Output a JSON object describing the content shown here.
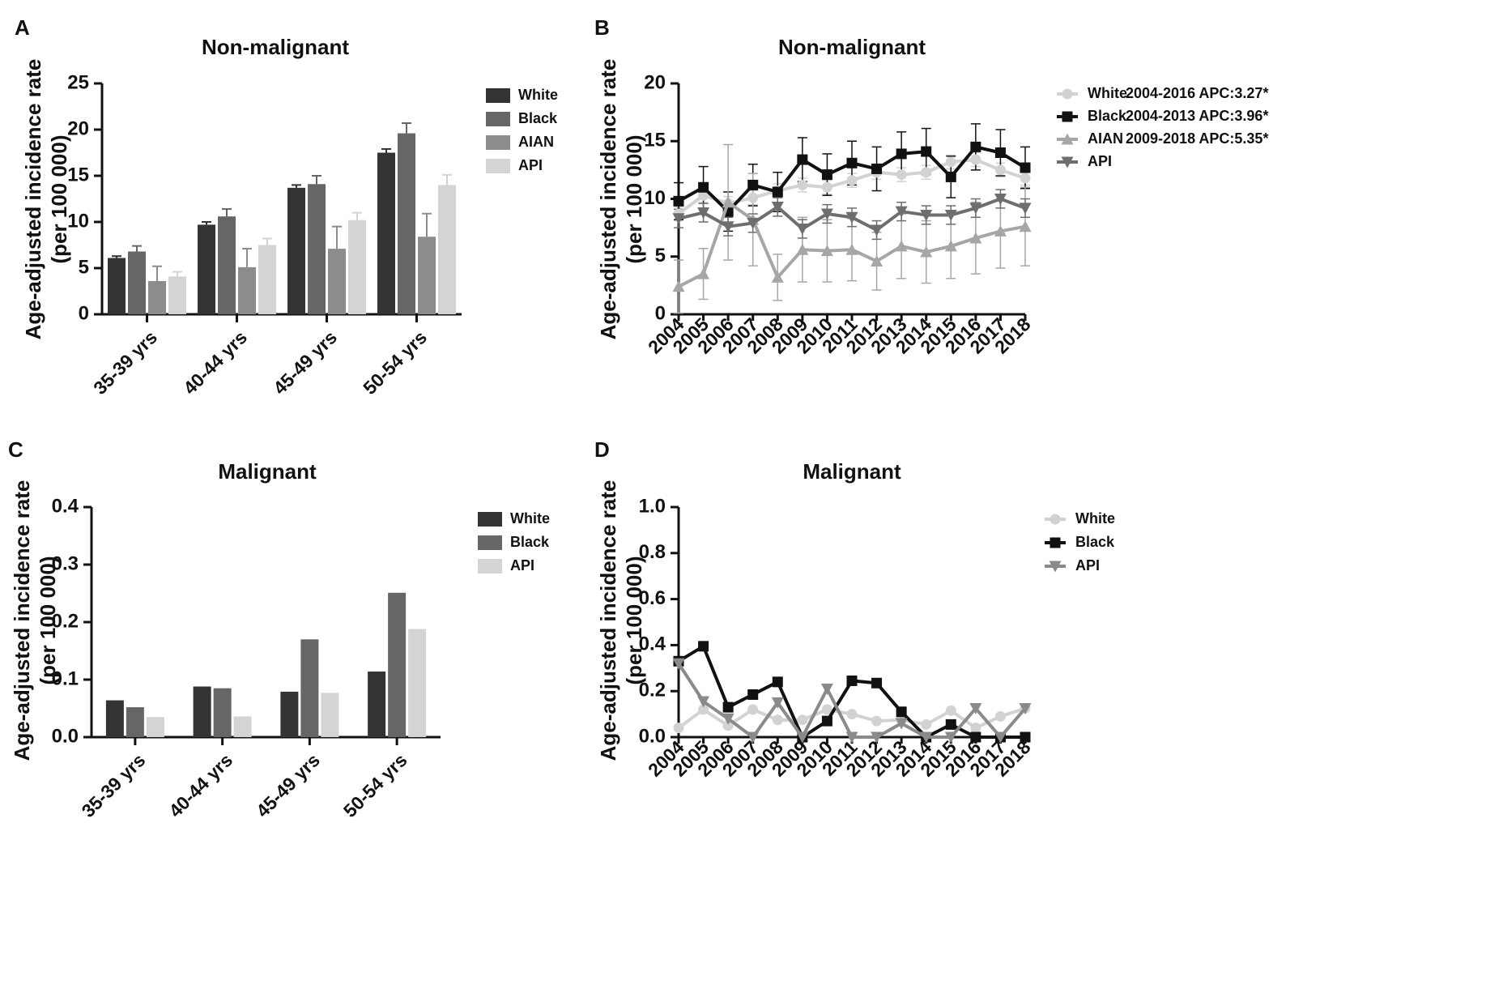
{
  "panels": [
    {
      "id": "A",
      "letter": "A",
      "chart_data": {
        "type": "bar",
        "title": "Non-malignant",
        "ylabel_line1": "Age-adjusted incidence rate",
        "ylabel_line2": "(per 100 000)",
        "ylim": [
          0,
          25
        ],
        "yticks": [
          "0",
          "5",
          "10",
          "15",
          "20",
          "25"
        ],
        "categories": [
          "35-39 yrs",
          "40-44 yrs",
          "45-49 yrs",
          "50-54 yrs"
        ],
        "series": [
          {
            "name": "White",
            "color": "#333333",
            "values": [
              6.1,
              9.7,
              13.7,
              17.5
            ],
            "errors": [
              0.2,
              0.3,
              0.3,
              0.4
            ]
          },
          {
            "name": "Black",
            "color": "#666666",
            "values": [
              6.8,
              10.6,
              14.1,
              19.6
            ],
            "errors": [
              0.6,
              0.8,
              0.9,
              1.1
            ]
          },
          {
            "name": "AIAN",
            "color": "#8c8c8c",
            "values": [
              3.6,
              5.1,
              7.1,
              8.4
            ],
            "errors": [
              1.6,
              2.0,
              2.4,
              2.5
            ]
          },
          {
            "name": "API",
            "color": "#d4d4d4",
            "values": [
              4.1,
              7.5,
              10.2,
              14.0
            ],
            "errors": [
              0.5,
              0.7,
              0.8,
              1.1
            ]
          }
        ]
      }
    },
    {
      "id": "B",
      "letter": "B",
      "chart_data": {
        "type": "line",
        "title": "Non-malignant",
        "ylabel_line1": "Age-adjusted incidence rate",
        "ylabel_line2": "(per 100 000)",
        "ylim": [
          0,
          20
        ],
        "yticks": [
          "0",
          "5",
          "10",
          "15",
          "20"
        ],
        "x": [
          "2004",
          "2005",
          "2006",
          "2007",
          "2008",
          "2009",
          "2010",
          "2011",
          "2012",
          "2013",
          "2014",
          "2015",
          "2016",
          "2017",
          "2018"
        ],
        "series": [
          {
            "name": "White",
            "color": "#d2d2d2",
            "marker": "circle",
            "annotation": "2004-2016 APC:3.27*",
            "values": [
              8.7,
              10.3,
              9.6,
              10.1,
              10.7,
              11.2,
              11.0,
              11.6,
              12.3,
              12.1,
              12.3,
              13.2,
              13.4,
              12.5,
              11.8
            ],
            "errors": [
              0.6,
              0.6,
              0.6,
              0.6,
              0.6,
              0.6,
              0.6,
              0.6,
              0.6,
              0.6,
              0.6,
              0.6,
              0.6,
              0.6,
              0.6
            ]
          },
          {
            "name": "Black",
            "color": "#111111",
            "marker": "square",
            "annotation": "2004-2013 APC:3.96*",
            "values": [
              9.8,
              11.0,
              8.9,
              11.2,
              10.6,
              13.4,
              12.1,
              13.1,
              12.6,
              13.9,
              14.1,
              11.9,
              14.5,
              14.0,
              12.7
            ],
            "errors": [
              1.6,
              1.8,
              1.7,
              1.8,
              1.7,
              1.9,
              1.8,
              1.9,
              1.9,
              1.9,
              2.0,
              1.8,
              2.0,
              2.0,
              1.8
            ]
          },
          {
            "name": "AIAN",
            "color": "#a6a6a6",
            "marker": "triangle-up",
            "annotation": "2009-2018 APC:5.35*",
            "values": [
              2.4,
              3.5,
              9.7,
              8.2,
              3.2,
              5.6,
              5.5,
              5.6,
              4.6,
              5.9,
              5.4,
              5.9,
              6.6,
              7.2,
              7.6
            ],
            "errors": [
              2.3,
              2.2,
              5.0,
              4.0,
              2.0,
              2.8,
              2.7,
              2.7,
              2.5,
              2.8,
              2.7,
              2.8,
              3.1,
              3.2,
              3.4
            ]
          },
          {
            "name": "API",
            "color": "#6e6e6e",
            "marker": "triangle-down",
            "annotation": "",
            "values": [
              8.3,
              8.8,
              7.6,
              7.9,
              9.3,
              7.4,
              8.7,
              8.4,
              7.3,
              8.9,
              8.6,
              8.6,
              9.2,
              10.0,
              9.2
            ],
            "errors": [
              0.8,
              0.8,
              0.8,
              0.8,
              0.8,
              0.8,
              0.8,
              0.8,
              0.8,
              0.8,
              0.8,
              0.8,
              0.8,
              0.8,
              0.8
            ]
          }
        ]
      }
    },
    {
      "id": "C",
      "letter": "C",
      "chart_data": {
        "type": "bar",
        "title": "Malignant",
        "ylabel_line1": "Age-adjusted incidence rate",
        "ylabel_line2": "(per 100 000)",
        "ylim": [
          0,
          0.4
        ],
        "yticks": [
          "0.0",
          "0.1",
          "0.2",
          "0.3",
          "0.4"
        ],
        "categories": [
          "35-39 yrs",
          "40-44 yrs",
          "45-49 yrs",
          "50-54 yrs"
        ],
        "series": [
          {
            "name": "White",
            "color": "#333333",
            "values": [
              0.064,
              0.088,
              0.079,
              0.114
            ]
          },
          {
            "name": "Black",
            "color": "#666666",
            "values": [
              0.052,
              0.085,
              0.17,
              0.251
            ]
          },
          {
            "name": "API",
            "color": "#d4d4d4",
            "values": [
              0.035,
              0.036,
              0.077,
              0.188
            ]
          }
        ]
      }
    },
    {
      "id": "D",
      "letter": "D",
      "chart_data": {
        "type": "line",
        "title": "Malignant",
        "ylabel_line1": "Age-adjusted incidence rate",
        "ylabel_line2": "(per 100 000)",
        "ylim": [
          0,
          1.0
        ],
        "yticks": [
          "0.0",
          "0.2",
          "0.4",
          "0.6",
          "0.8",
          "1.0"
        ],
        "x": [
          "2004",
          "2005",
          "2006",
          "2007",
          "2008",
          "2009",
          "2010",
          "2011",
          "2012",
          "2013",
          "2014",
          "2015",
          "2016",
          "2017",
          "2018"
        ],
        "series": [
          {
            "name": "White",
            "color": "#d2d2d2",
            "marker": "circle",
            "values": [
              0.04,
              0.12,
              0.05,
              0.12,
              0.075,
              0.075,
              0.12,
              0.1,
              0.07,
              0.075,
              0.055,
              0.115,
              0.04,
              0.09,
              0.125
            ]
          },
          {
            "name": "Black",
            "color": "#111111",
            "marker": "square",
            "values": [
              0.33,
              0.395,
              0.13,
              0.185,
              0.24,
              0.0,
              0.07,
              0.245,
              0.235,
              0.11,
              0.0,
              0.055,
              0.0,
              0.0,
              0.0
            ]
          },
          {
            "name": "API",
            "color": "#8a8a8a",
            "marker": "triangle-down",
            "values": [
              0.32,
              0.155,
              0.08,
              0.0,
              0.15,
              0.0,
              0.21,
              0.0,
              0.0,
              0.06,
              0.0,
              0.0,
              0.125,
              0.0,
              0.125
            ]
          }
        ]
      }
    }
  ]
}
